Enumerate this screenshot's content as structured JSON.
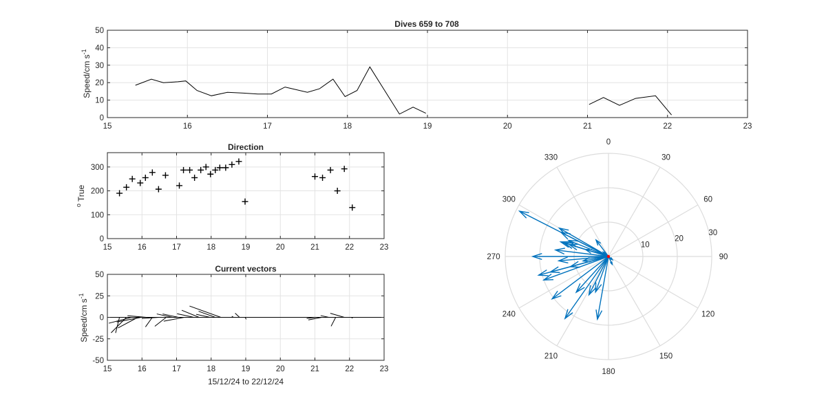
{
  "chart_data": [
    {
      "type": "line",
      "title": "Dives 659 to 708",
      "xlabel": "",
      "ylabel": "Speed/cm s",
      "ylabel_superscript": "-1",
      "xlim": [
        15,
        23
      ],
      "ylim": [
        0,
        50
      ],
      "xticks": [
        "15",
        "16",
        "17",
        "18",
        "19",
        "20",
        "21",
        "22",
        "23"
      ],
      "yticks": [
        "0",
        "10",
        "20",
        "30",
        "40",
        "50"
      ],
      "grid": true,
      "color": "#000000",
      "segments": [
        {
          "x": [
            15.35,
            15.55,
            15.7,
            15.88,
            15.98,
            16.12,
            16.3,
            16.5,
            16.7,
            16.88,
            17.05,
            17.22,
            17.5,
            17.65,
            17.82,
            17.97,
            18.12,
            18.28,
            18.65,
            18.82,
            18.98
          ],
          "y": [
            18.5,
            22,
            20,
            20.5,
            21,
            15.5,
            12.5,
            14.5,
            14,
            13.5,
            13.5,
            17.5,
            14.5,
            16.5,
            22,
            12,
            15.5,
            29,
            2,
            6,
            2.5
          ]
        },
        {
          "x": [
            21.02,
            21.2,
            21.4,
            21.6,
            21.85,
            22.05
          ],
          "y": [
            7.5,
            11.5,
            7,
            11,
            12.5,
            1.5
          ]
        }
      ]
    },
    {
      "type": "scatter",
      "title": "Direction",
      "xlabel": "",
      "ylabel": "True",
      "ylabel_prefix": "o",
      "xlim": [
        15,
        23
      ],
      "ylim": [
        0,
        360
      ],
      "xticks": [
        "15",
        "16",
        "17",
        "18",
        "19",
        "20",
        "21",
        "22",
        "23"
      ],
      "yticks": [
        "0",
        "100",
        "200",
        "300"
      ],
      "grid": true,
      "marker": "+",
      "color": "#000000",
      "x": [
        15.35,
        15.55,
        15.72,
        15.95,
        16.1,
        16.3,
        16.48,
        16.68,
        17.08,
        17.2,
        17.38,
        17.52,
        17.7,
        17.85,
        17.98,
        18.12,
        18.25,
        18.42,
        18.6,
        18.8,
        18.98,
        21.0,
        21.22,
        21.45,
        21.65,
        21.85,
        22.08
      ],
      "y": [
        190,
        215,
        250,
        233,
        255,
        277,
        207,
        265,
        222,
        287,
        287,
        255,
        287,
        300,
        270,
        287,
        297,
        297,
        310,
        323,
        155,
        260,
        255,
        287,
        200,
        292,
        130
      ]
    },
    {
      "type": "vector",
      "title": "Current vectors",
      "xlabel": "15/12/24 to 22/12/24",
      "ylabel": "Speed/cm s",
      "ylabel_superscript": "-1",
      "xlim": [
        15,
        23
      ],
      "ylim": [
        -50,
        50
      ],
      "xticks": [
        "15",
        "16",
        "17",
        "18",
        "19",
        "20",
        "21",
        "22",
        "23"
      ],
      "yticks": [
        "-50",
        "-25",
        "0",
        "25",
        "50"
      ],
      "grid": true,
      "color": "#000000",
      "data_aspect_days_per_cm_s": 0.035,
      "vectors": [
        {
          "x": 15.35,
          "speed": 18.5,
          "dir": 190
        },
        {
          "x": 15.55,
          "speed": 22,
          "dir": 215
        },
        {
          "x": 15.7,
          "speed": 20,
          "dir": 250
        },
        {
          "x": 15.88,
          "speed": 20.5,
          "dir": 233
        },
        {
          "x": 15.98,
          "speed": 21,
          "dir": 255
        },
        {
          "x": 16.12,
          "speed": 15.5,
          "dir": 277
        },
        {
          "x": 16.3,
          "speed": 12.5,
          "dir": 207
        },
        {
          "x": 16.5,
          "speed": 14.5,
          "dir": 265
        },
        {
          "x": 16.7,
          "speed": 14,
          "dir": 222
        },
        {
          "x": 16.88,
          "speed": 13.5,
          "dir": 287
        },
        {
          "x": 17.05,
          "speed": 13.5,
          "dir": 287
        },
        {
          "x": 17.22,
          "speed": 17.5,
          "dir": 255
        },
        {
          "x": 17.5,
          "speed": 14.5,
          "dir": 287
        },
        {
          "x": 17.65,
          "speed": 16.5,
          "dir": 300
        },
        {
          "x": 17.82,
          "speed": 22,
          "dir": 270
        },
        {
          "x": 17.97,
          "speed": 12,
          "dir": 287
        },
        {
          "x": 18.12,
          "speed": 15.5,
          "dir": 297
        },
        {
          "x": 18.28,
          "speed": 29,
          "dir": 297
        },
        {
          "x": 18.65,
          "speed": 2,
          "dir": 310
        },
        {
          "x": 18.82,
          "speed": 6,
          "dir": 323
        },
        {
          "x": 18.98,
          "speed": 2.5,
          "dir": 155
        },
        {
          "x": 21.02,
          "speed": 7.5,
          "dir": 260
        },
        {
          "x": 21.2,
          "speed": 11.5,
          "dir": 255
        },
        {
          "x": 21.4,
          "speed": 7,
          "dir": 287
        },
        {
          "x": 21.6,
          "speed": 11,
          "dir": 200
        },
        {
          "x": 21.85,
          "speed": 12.5,
          "dir": 292
        },
        {
          "x": 22.05,
          "speed": 1.5,
          "dir": 130
        }
      ]
    },
    {
      "type": "polar",
      "title": "",
      "rlim": [
        0,
        30
      ],
      "rticks": [
        "10",
        "20",
        "30"
      ],
      "angle_ticks": [
        "0",
        "30",
        "60",
        "90",
        "120",
        "150",
        "180",
        "210",
        "240",
        "270",
        "300",
        "330"
      ],
      "angle_zero": "top",
      "angle_direction": "clockwise",
      "grid": true,
      "arrow_color": "#0072bd",
      "origin_marker_color": "#ff0000",
      "arrows": [
        {
          "dir": 190,
          "speed": 18.5
        },
        {
          "dir": 215,
          "speed": 22
        },
        {
          "dir": 250,
          "speed": 20
        },
        {
          "dir": 233,
          "speed": 20.5
        },
        {
          "dir": 255,
          "speed": 21
        },
        {
          "dir": 277,
          "speed": 15.5
        },
        {
          "dir": 207,
          "speed": 12.5
        },
        {
          "dir": 265,
          "speed": 14.5
        },
        {
          "dir": 222,
          "speed": 14
        },
        {
          "dir": 287,
          "speed": 13.5
        },
        {
          "dir": 287,
          "speed": 13.5
        },
        {
          "dir": 255,
          "speed": 17.5
        },
        {
          "dir": 287,
          "speed": 14.5
        },
        {
          "dir": 300,
          "speed": 16.5
        },
        {
          "dir": 270,
          "speed": 22
        },
        {
          "dir": 287,
          "speed": 12
        },
        {
          "dir": 297,
          "speed": 15.5
        },
        {
          "dir": 297,
          "speed": 29
        },
        {
          "dir": 310,
          "speed": 2
        },
        {
          "dir": 323,
          "speed": 6
        },
        {
          "dir": 155,
          "speed": 2.5
        },
        {
          "dir": 260,
          "speed": 7.5
        },
        {
          "dir": 255,
          "speed": 11.5
        },
        {
          "dir": 287,
          "speed": 7
        },
        {
          "dir": 200,
          "speed": 11
        },
        {
          "dir": 292,
          "speed": 12.5
        },
        {
          "dir": 130,
          "speed": 1.5
        }
      ]
    }
  ]
}
